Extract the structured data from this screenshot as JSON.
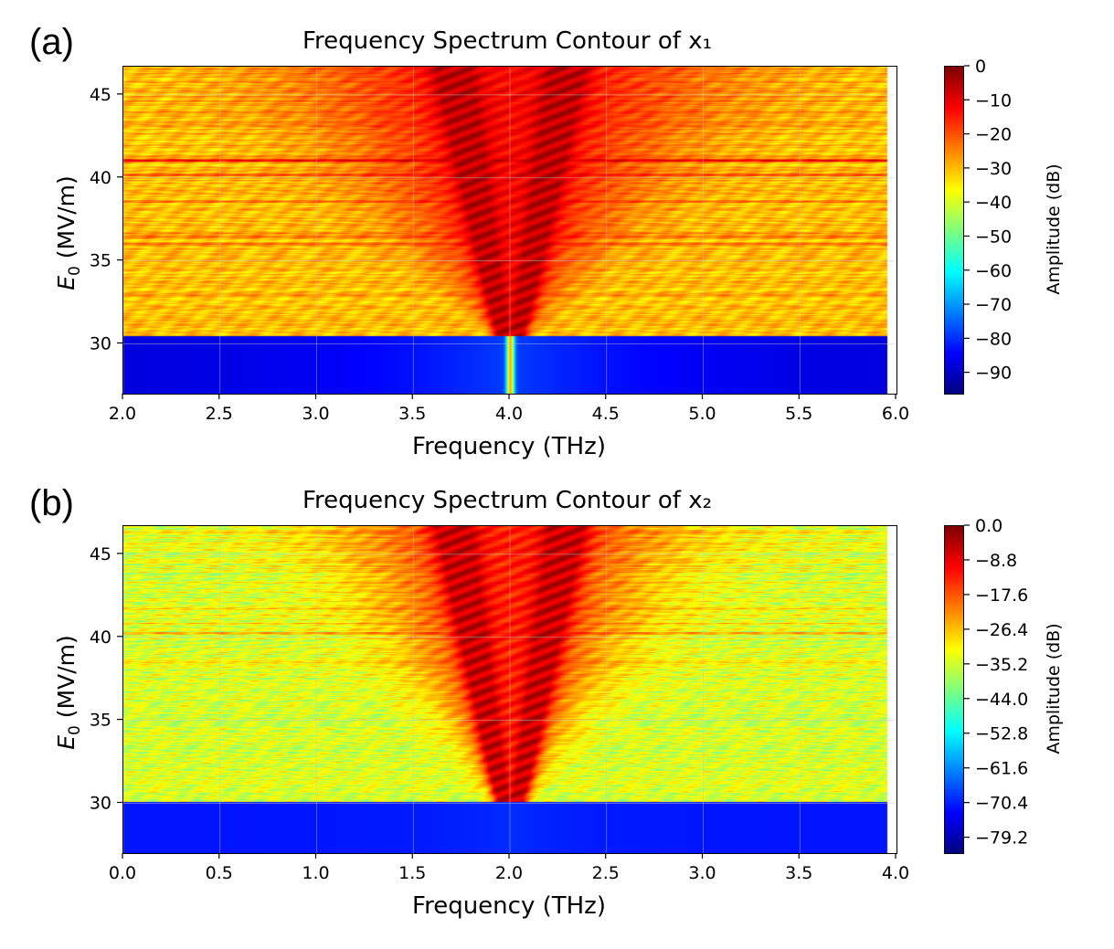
{
  "panels": [
    {
      "label": "(a)",
      "title": "Frequency Spectrum Contour of x₁",
      "xlabel": "Frequency (THz)",
      "ylabel_main": "E",
      "ylabel_sub": "0",
      "ylabel_unit": " (MV/m)",
      "colorbar_label": "Amplitude (dB)",
      "colorbar_ticks": [
        "0",
        "−10",
        "−20",
        "−30",
        "−40",
        "−50",
        "−60",
        "−70",
        "−80",
        "−90"
      ]
    },
    {
      "label": "(b)",
      "title": "Frequency Spectrum Contour of x₂",
      "xlabel": "Frequency (THz)",
      "ylabel_main": "E",
      "ylabel_sub": "0",
      "ylabel_unit": " (MV/m)",
      "colorbar_label": "Amplitude (dB)",
      "colorbar_ticks": [
        "0.0",
        "−8.8",
        "−17.6",
        "−26.4",
        "−35.2",
        "−44.0",
        "−52.8",
        "−61.6",
        "−70.4",
        "−79.2"
      ]
    }
  ],
  "chart_data": [
    {
      "type": "heatmap",
      "title": "Frequency Spectrum Contour of x₁",
      "xlabel": "Frequency (THz)",
      "ylabel": "E0 (MV/m)",
      "colorbar_label": "Amplitude (dB)",
      "colormap": "jet",
      "xlim": [
        2.0,
        6.0
      ],
      "ylim": [
        27.0,
        46.7
      ],
      "data_xrange": [
        2.0,
        5.95
      ],
      "x_ticks": [
        2.0,
        2.5,
        3.0,
        3.5,
        4.0,
        4.5,
        5.0,
        5.5,
        6.0
      ],
      "x_tick_labels": [
        "2.0",
        "2.5",
        "3.0",
        "3.5",
        "4.0",
        "4.5",
        "5.0",
        "5.5",
        "6.0"
      ],
      "y_ticks": [
        30,
        35,
        40,
        45
      ],
      "y_tick_labels": [
        "30",
        "35",
        "40",
        "45"
      ],
      "clim": [
        -96,
        0
      ],
      "colorbar_tick_values": [
        0,
        -10,
        -20,
        -30,
        -40,
        -50,
        -60,
        -70,
        -80,
        -90
      ],
      "center_frequency": 4.0,
      "threshold_field": 30.5,
      "below_threshold_db": -88,
      "peak_spread_at_top": 0.75,
      "background_db": -30
    },
    {
      "type": "heatmap",
      "title": "Frequency Spectrum Contour of x₂",
      "xlabel": "Frequency (THz)",
      "ylabel": "E0 (MV/m)",
      "colorbar_label": "Amplitude (dB)",
      "colormap": "jet",
      "xlim": [
        0.0,
        4.0
      ],
      "ylim": [
        27.0,
        46.7
      ],
      "data_xrange": [
        0.0,
        3.95
      ],
      "x_ticks": [
        0.0,
        0.5,
        1.0,
        1.5,
        2.0,
        2.5,
        3.0,
        3.5,
        4.0
      ],
      "x_tick_labels": [
        "0.0",
        "0.5",
        "1.0",
        "1.5",
        "2.0",
        "2.5",
        "3.0",
        "3.5",
        "4.0"
      ],
      "y_ticks": [
        30,
        35,
        40,
        45
      ],
      "y_tick_labels": [
        "30",
        "35",
        "40",
        "45"
      ],
      "clim": [
        -83,
        0
      ],
      "colorbar_tick_values": [
        0.0,
        -8.8,
        -17.6,
        -26.4,
        -35.2,
        -44.0,
        -52.8,
        -61.6,
        -70.4,
        -79.2
      ],
      "center_frequency": 2.0,
      "threshold_field": 30.1,
      "below_threshold_db": -71,
      "peak_spread_at_top": 0.6,
      "background_db": -34
    }
  ],
  "colors": {
    "grid": "#c8c8c8",
    "axis": "#000000",
    "background": "#ffffff"
  }
}
